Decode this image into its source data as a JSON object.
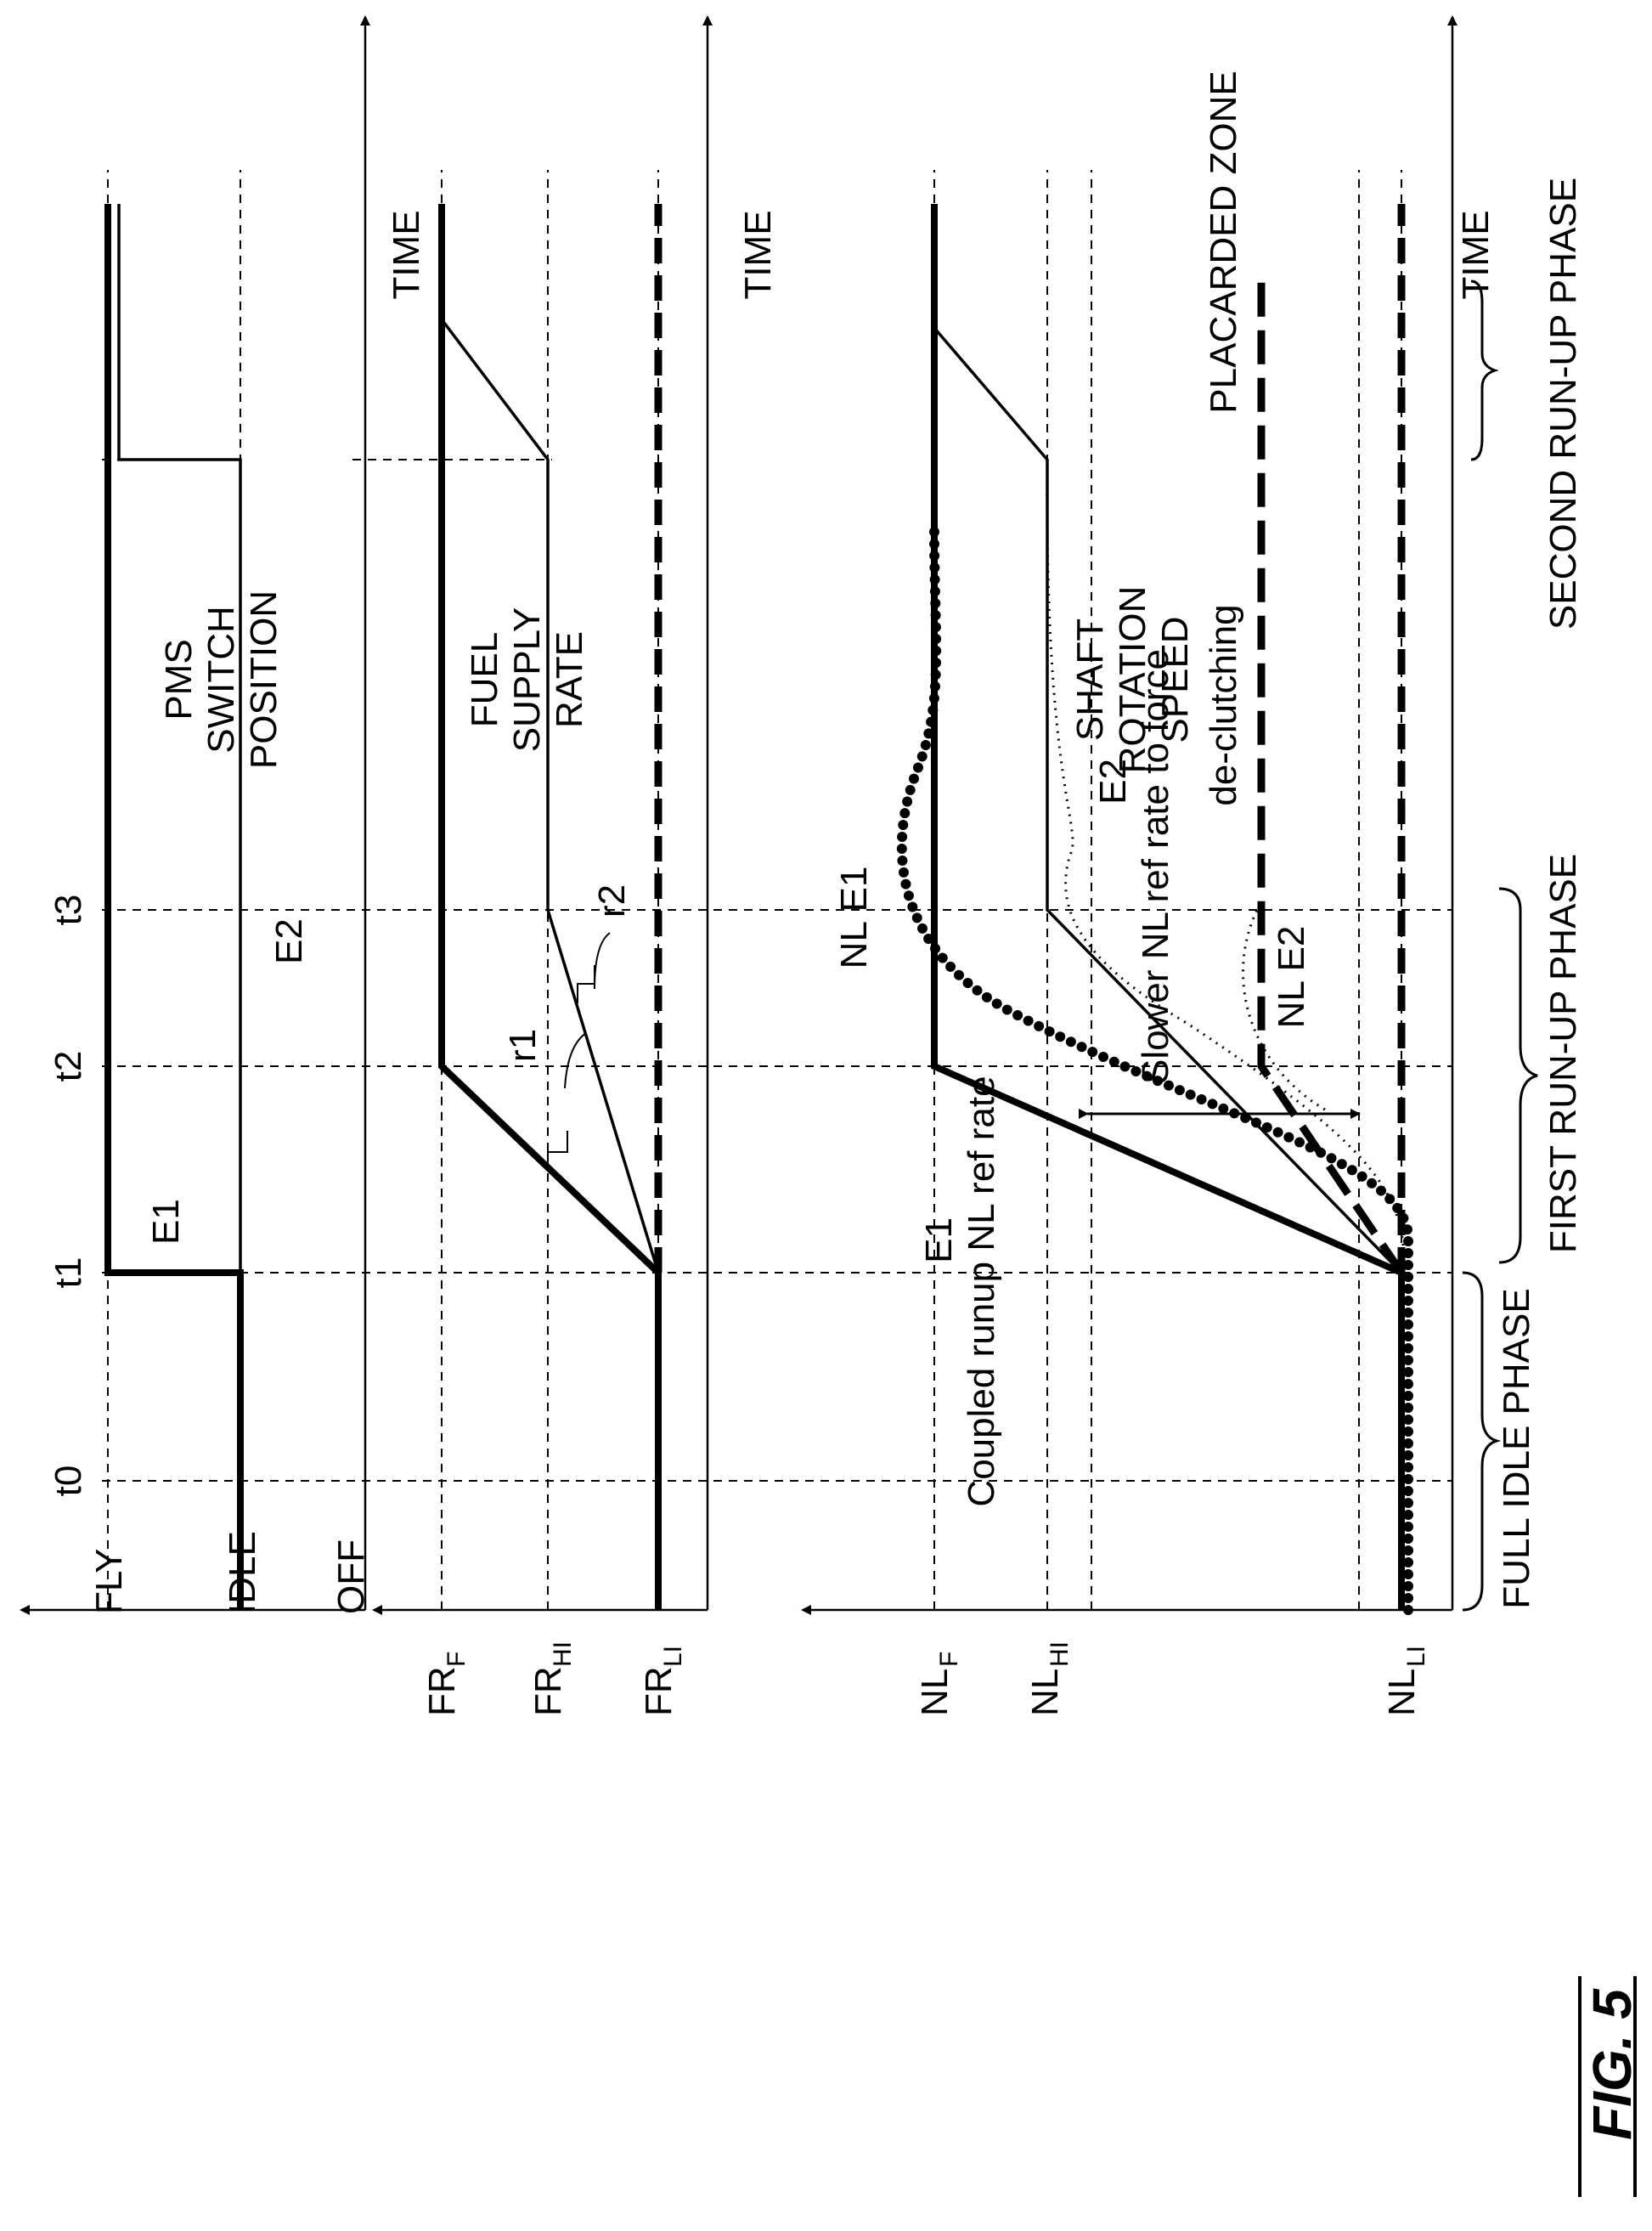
{
  "figure_label": "FIG. 5",
  "time_markers": [
    "t0",
    "t1",
    "t2",
    "t3"
  ],
  "axis_label": "TIME",
  "panel_pms": {
    "title": [
      "PMS",
      "SWITCH",
      "POSITION"
    ],
    "levels": [
      "FLY",
      "IDLE",
      "OFF"
    ],
    "curve_labels": {
      "e1": "E1",
      "e2": "E2"
    }
  },
  "panel_fuel": {
    "title": [
      "FUEL",
      "SUPPLY",
      "RATE"
    ],
    "levels": [
      {
        "base": "FR",
        "sub": "F"
      },
      {
        "base": "FR",
        "sub": "HI"
      },
      {
        "base": "FR",
        "sub": "LI"
      }
    ],
    "rate_labels": {
      "r1": "r1",
      "r2": "r2"
    }
  },
  "panel_speed": {
    "title": [
      "SHAFT",
      "ROTATION",
      "SPEED"
    ],
    "levels": [
      {
        "base": "NL",
        "sub": "F"
      },
      {
        "base": "NL",
        "sub": "HI"
      },
      {
        "base": "NL",
        "sub": "LI"
      }
    ],
    "e1_annotation": [
      "E1",
      "Coupled runup NL ref rate"
    ],
    "e2_annotation": [
      "E2",
      "Slower NL ref rate to force",
      "de-clutching"
    ],
    "nl_e1": "NL E1",
    "nl_e2": "NL E2",
    "placarded_zone": "PLACARDED ZONE"
  },
  "phases": [
    "FULL IDLE PHASE",
    "FIRST RUN-UP PHASE",
    "SECOND RUN-UP PHASE"
  ]
}
